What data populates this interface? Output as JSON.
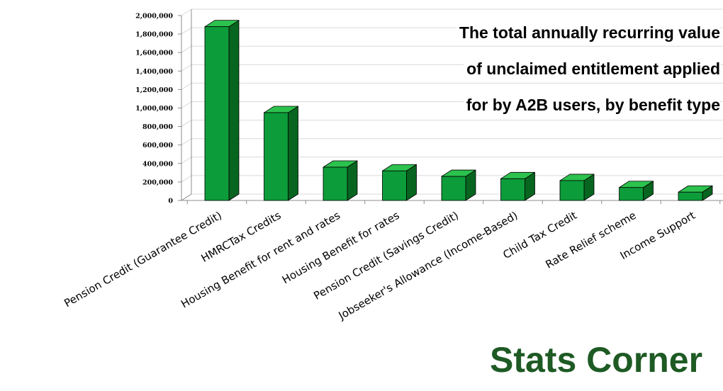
{
  "chart_data": {
    "type": "bar",
    "title_lines": [
      "The total annually recurring value",
      "of unclaimed entitlement applied",
      "for by A2B users, by benefit type"
    ],
    "categories": [
      "Pension Credit (Guarantee Credit)",
      "HMRCTax Credits",
      "Housing Benefit for rent and rates",
      "Housing Benefit for rates",
      "Pension Credit (Savings Credit)",
      "Jobseeker's Allowance (Income-Based)",
      "Child Tax Credit",
      "Rate Relief scheme",
      "Income Support"
    ],
    "values": [
      1880000,
      950000,
      360000,
      320000,
      260000,
      235000,
      215000,
      140000,
      90000
    ],
    "ylim": [
      0,
      2000000
    ],
    "yticks": [
      0,
      200000,
      400000,
      600000,
      800000,
      1000000,
      1200000,
      1400000,
      1600000,
      1800000,
      2000000
    ],
    "ytick_labels": [
      "0",
      "200,000",
      "400,000",
      "600,000",
      "800,000",
      "1,000,000",
      "1,200,000",
      "1,400,000",
      "1,600,000",
      "1,800,000",
      "2,000,000"
    ],
    "grid": true,
    "bar_style": "3d",
    "colors": {
      "bar_front": "#0c9c3a",
      "bar_side": "#07651f",
      "bar_top": "#2cc24e",
      "bar_outline": "#000000",
      "grid": "#d9d9d9",
      "axis": "#8c8c8c"
    }
  },
  "footer": {
    "text": "Stats Corner",
    "color": "#1e5a24"
  }
}
